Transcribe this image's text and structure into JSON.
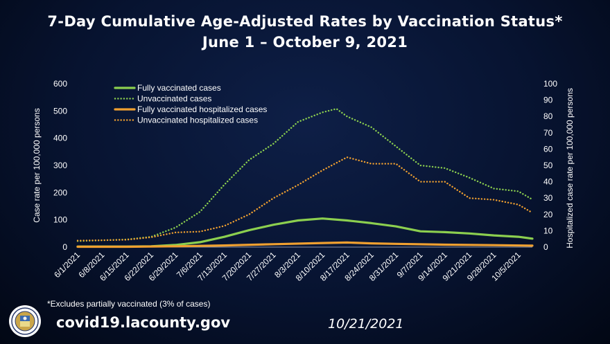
{
  "header": {
    "title_line1": "7-Day Cumulative Age-Adjusted Rates by Vaccination Status*",
    "title_line2": "June 1 – October 9, 2021"
  },
  "footer": {
    "footnote": "*Excludes partially vaccinated (3% of cases)",
    "url": "covid19.lacounty.gov",
    "date": "10/21/2021",
    "seal_icon": "la-county-seal-icon"
  },
  "colors": {
    "fully_vaccinated_cases": "#8ccf4f",
    "unvaccinated_cases": "#8ccf4f",
    "fully_vaccinated_hospitalized": "#f0a030",
    "unvaccinated_hospitalized": "#f0a030",
    "axis_text": "#ffffff"
  },
  "chart_data": {
    "type": "line",
    "title": "7-Day Cumulative Age-Adjusted Rates by Vaccination Status*",
    "subtitle": "June 1 – October 9, 2021",
    "ylabel": "Case rate per 100,000 persons",
    "y2label": "Hospitalized case rate per 100,000 persons",
    "ylim": [
      0,
      600
    ],
    "y2lim": [
      0,
      100
    ],
    "yticks": [
      "0",
      "100",
      "200",
      "300",
      "400",
      "500",
      "600"
    ],
    "y2ticks": [
      "0",
      "10",
      "20",
      "30",
      "40",
      "50",
      "60",
      "70",
      "80",
      "90",
      "100"
    ],
    "legend_position": "top-left",
    "x_labels": [
      "6/1/2021",
      "6/8/2021",
      "6/15/2021",
      "6/22/2021",
      "6/29/2021",
      "7/6/2021",
      "7/13/2021",
      "7/20/2021",
      "7/27/2021",
      "8/3/2021",
      "8/10/2021",
      "8/17/2021",
      "8/24/2021",
      "8/31/2021",
      "9/7/2021",
      "9/14/2021",
      "9/21/2021",
      "9/28/2021",
      "10/5/2021"
    ],
    "x_start": "2021-06-01",
    "x_end": "2021-10-09",
    "series": [
      {
        "name": "Fully vaccinated cases",
        "axis": "left",
        "style": "solid",
        "points": [
          [
            "2021-06-01",
            2
          ],
          [
            "2021-06-08",
            2
          ],
          [
            "2021-06-15",
            2
          ],
          [
            "2021-06-22",
            3
          ],
          [
            "2021-06-29",
            8
          ],
          [
            "2021-07-06",
            18
          ],
          [
            "2021-07-13",
            38
          ],
          [
            "2021-07-20",
            62
          ],
          [
            "2021-07-27",
            82
          ],
          [
            "2021-08-03",
            98
          ],
          [
            "2021-08-10",
            105
          ],
          [
            "2021-08-17",
            98
          ],
          [
            "2021-08-24",
            88
          ],
          [
            "2021-08-31",
            76
          ],
          [
            "2021-09-07",
            58
          ],
          [
            "2021-09-14",
            55
          ],
          [
            "2021-09-21",
            50
          ],
          [
            "2021-09-28",
            43
          ],
          [
            "2021-10-05",
            38
          ],
          [
            "2021-10-09",
            31
          ]
        ]
      },
      {
        "name": "Unvaccinated cases",
        "axis": "left",
        "style": "dotted",
        "points": [
          [
            "2021-06-01",
            22
          ],
          [
            "2021-06-08",
            25
          ],
          [
            "2021-06-15",
            28
          ],
          [
            "2021-06-22",
            38
          ],
          [
            "2021-06-29",
            72
          ],
          [
            "2021-07-06",
            130
          ],
          [
            "2021-07-13",
            230
          ],
          [
            "2021-07-20",
            320
          ],
          [
            "2021-07-27",
            380
          ],
          [
            "2021-08-03",
            460
          ],
          [
            "2021-08-10",
            495
          ],
          [
            "2021-08-14",
            508
          ],
          [
            "2021-08-17",
            480
          ],
          [
            "2021-08-24",
            440
          ],
          [
            "2021-08-31",
            370
          ],
          [
            "2021-09-07",
            300
          ],
          [
            "2021-09-14",
            290
          ],
          [
            "2021-09-21",
            255
          ],
          [
            "2021-09-28",
            215
          ],
          [
            "2021-10-05",
            205
          ],
          [
            "2021-10-09",
            175
          ]
        ]
      },
      {
        "name": "Fully vaccinated hospitalized cases",
        "axis": "right",
        "style": "solid",
        "points": [
          [
            "2021-06-01",
            0.2
          ],
          [
            "2021-06-15",
            0.2
          ],
          [
            "2021-06-29",
            0.5
          ],
          [
            "2021-07-13",
            1.0
          ],
          [
            "2021-07-27",
            1.8
          ],
          [
            "2021-08-10",
            2.5
          ],
          [
            "2021-08-17",
            2.8
          ],
          [
            "2021-08-24",
            2.3
          ],
          [
            "2021-08-31",
            2.0
          ],
          [
            "2021-09-14",
            1.5
          ],
          [
            "2021-09-28",
            1.2
          ],
          [
            "2021-10-09",
            0.9
          ]
        ]
      },
      {
        "name": "Unvaccinated hospitalized cases",
        "axis": "right",
        "style": "dotted",
        "points": [
          [
            "2021-06-01",
            4
          ],
          [
            "2021-06-08",
            4.2
          ],
          [
            "2021-06-15",
            4.5
          ],
          [
            "2021-06-22",
            6
          ],
          [
            "2021-06-29",
            9
          ],
          [
            "2021-07-06",
            9.5
          ],
          [
            "2021-07-13",
            13
          ],
          [
            "2021-07-20",
            20
          ],
          [
            "2021-07-27",
            30
          ],
          [
            "2021-08-03",
            38
          ],
          [
            "2021-08-10",
            47
          ],
          [
            "2021-08-17",
            55
          ],
          [
            "2021-08-24",
            51
          ],
          [
            "2021-08-31",
            51
          ],
          [
            "2021-09-07",
            40
          ],
          [
            "2021-09-14",
            40
          ],
          [
            "2021-09-21",
            30
          ],
          [
            "2021-09-28",
            29
          ],
          [
            "2021-10-05",
            26
          ],
          [
            "2021-10-09",
            21
          ]
        ]
      }
    ]
  }
}
